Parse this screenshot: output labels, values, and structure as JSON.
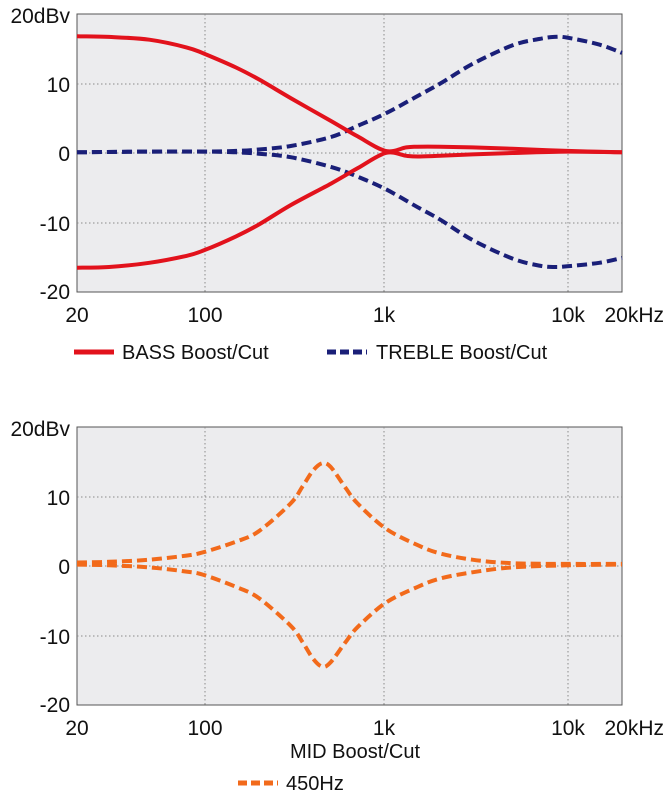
{
  "chart_data": [
    {
      "type": "line",
      "title": "",
      "xlabel": "",
      "ylabel": "",
      "x_scale": "log",
      "xlim": [
        20,
        20000
      ],
      "ylim": [
        -20,
        20
      ],
      "x_ticks": [
        {
          "value": 20,
          "label": "20"
        },
        {
          "value": 100,
          "label": "100"
        },
        {
          "value": 1000,
          "label": "1k"
        },
        {
          "value": 10000,
          "label": "10k"
        },
        {
          "value": 20000,
          "label": "20kHz"
        }
      ],
      "y_ticks": [
        {
          "value": 20,
          "label": "20dBv"
        },
        {
          "value": 10,
          "label": "10"
        },
        {
          "value": 0,
          "label": "0"
        },
        {
          "value": -10,
          "label": "-10"
        },
        {
          "value": -20,
          "label": "-20"
        }
      ],
      "grid": true,
      "legend": {
        "placement": "bottom",
        "entries": [
          {
            "label": "BASS Boost/Cut",
            "color": "#e2121c",
            "style": "solid"
          },
          {
            "label": "TREBLE Boost/Cut",
            "color": "#1a1f78",
            "style": "dashed"
          }
        ]
      },
      "series": [
        {
          "name": "BASS Boost/Cut",
          "color": "#e2121c",
          "style": "solid",
          "x": [
            20,
            30,
            50,
            80,
            100,
            150,
            200,
            300,
            500,
            700,
            1000,
            1300,
            1500,
            2000,
            3000,
            5000,
            10000,
            20000
          ],
          "y": [
            16.8,
            16.7,
            16.3,
            15.2,
            14.3,
            12.3,
            10.6,
            7.9,
            4.6,
            2.4,
            0.3,
            0.8,
            0.9,
            0.9,
            0.8,
            0.6,
            0.3,
            0.1
          ]
        },
        {
          "name": "BASS Boost/Cut",
          "color": "#e2121c",
          "style": "solid",
          "x": [
            20,
            30,
            50,
            80,
            100,
            150,
            200,
            300,
            500,
            700,
            1000,
            1300,
            1500,
            2000,
            3000,
            5000,
            10000,
            20000
          ],
          "y": [
            -16.5,
            -16.4,
            -15.8,
            -14.8,
            -14.0,
            -12.0,
            -10.3,
            -7.5,
            -4.4,
            -2.2,
            0.0,
            -0.4,
            -0.5,
            -0.4,
            -0.2,
            0.0,
            0.2,
            0.1
          ]
        },
        {
          "name": "TREBLE Boost/Cut",
          "color": "#1a1f78",
          "style": "dashed",
          "x": [
            20,
            50,
            100,
            150,
            200,
            300,
            500,
            700,
            1000,
            1500,
            2000,
            3000,
            5000,
            7000,
            8500,
            10000,
            15000,
            20000
          ],
          "y": [
            0.1,
            0.2,
            0.2,
            0.3,
            0.5,
            1.0,
            2.3,
            3.9,
            5.7,
            8.2,
            10.0,
            12.8,
            15.5,
            16.4,
            16.7,
            16.6,
            15.6,
            14.4
          ]
        },
        {
          "name": "TREBLE Boost/Cut",
          "color": "#1a1f78",
          "style": "dashed",
          "x": [
            20,
            50,
            100,
            150,
            200,
            300,
            500,
            700,
            1000,
            1500,
            2000,
            3000,
            5000,
            7000,
            8500,
            10000,
            15000,
            20000
          ],
          "y": [
            0.1,
            0.2,
            0.2,
            0.1,
            -0.1,
            -0.6,
            -2.0,
            -3.4,
            -5.2,
            -7.8,
            -9.6,
            -12.5,
            -15.2,
            -16.2,
            -16.4,
            -16.3,
            -15.8,
            -15.1
          ]
        }
      ]
    },
    {
      "type": "line",
      "title": "MID Boost/Cut",
      "xlabel": "",
      "ylabel": "",
      "x_scale": "log",
      "xlim": [
        20,
        20000
      ],
      "ylim": [
        -20,
        20
      ],
      "x_ticks": [
        {
          "value": 20,
          "label": "20"
        },
        {
          "value": 100,
          "label": "100"
        },
        {
          "value": 1000,
          "label": "1k"
        },
        {
          "value": 10000,
          "label": "10k"
        },
        {
          "value": 20000,
          "label": "20kHz"
        }
      ],
      "y_ticks": [
        {
          "value": 20,
          "label": "20dBv"
        },
        {
          "value": 10,
          "label": "10"
        },
        {
          "value": 0,
          "label": "0"
        },
        {
          "value": -10,
          "label": "-10"
        },
        {
          "value": -20,
          "label": "-20"
        }
      ],
      "grid": true,
      "legend": {
        "placement": "bottom",
        "entries": [
          {
            "label": "450Hz",
            "color": "#f26a1b",
            "style": "dashed"
          }
        ]
      },
      "series": [
        {
          "name": "450Hz",
          "color": "#f26a1b",
          "style": "dashed",
          "x": [
            20,
            30,
            50,
            80,
            100,
            150,
            200,
            300,
            350,
            400,
            450,
            500,
            600,
            700,
            1000,
            1500,
            2000,
            3000,
            5000,
            10000,
            20000
          ],
          "y": [
            0.5,
            0.6,
            0.9,
            1.5,
            2.0,
            3.5,
            5.0,
            9.0,
            11.5,
            13.8,
            14.8,
            14.2,
            11.3,
            9.0,
            5.4,
            3.0,
            1.8,
            0.9,
            0.4,
            0.3,
            0.3
          ]
        },
        {
          "name": "450Hz",
          "color": "#f26a1b",
          "style": "dashed",
          "x": [
            20,
            30,
            50,
            80,
            100,
            150,
            200,
            300,
            350,
            400,
            450,
            500,
            600,
            700,
            1000,
            1500,
            2000,
            3000,
            5000,
            10000,
            20000
          ],
          "y": [
            0.2,
            0.1,
            -0.2,
            -0.8,
            -1.3,
            -3.0,
            -4.6,
            -8.6,
            -11.0,
            -13.4,
            -14.5,
            -13.8,
            -11.0,
            -8.8,
            -5.3,
            -3.0,
            -1.8,
            -0.9,
            -0.2,
            0.1,
            0.2
          ]
        }
      ]
    }
  ]
}
